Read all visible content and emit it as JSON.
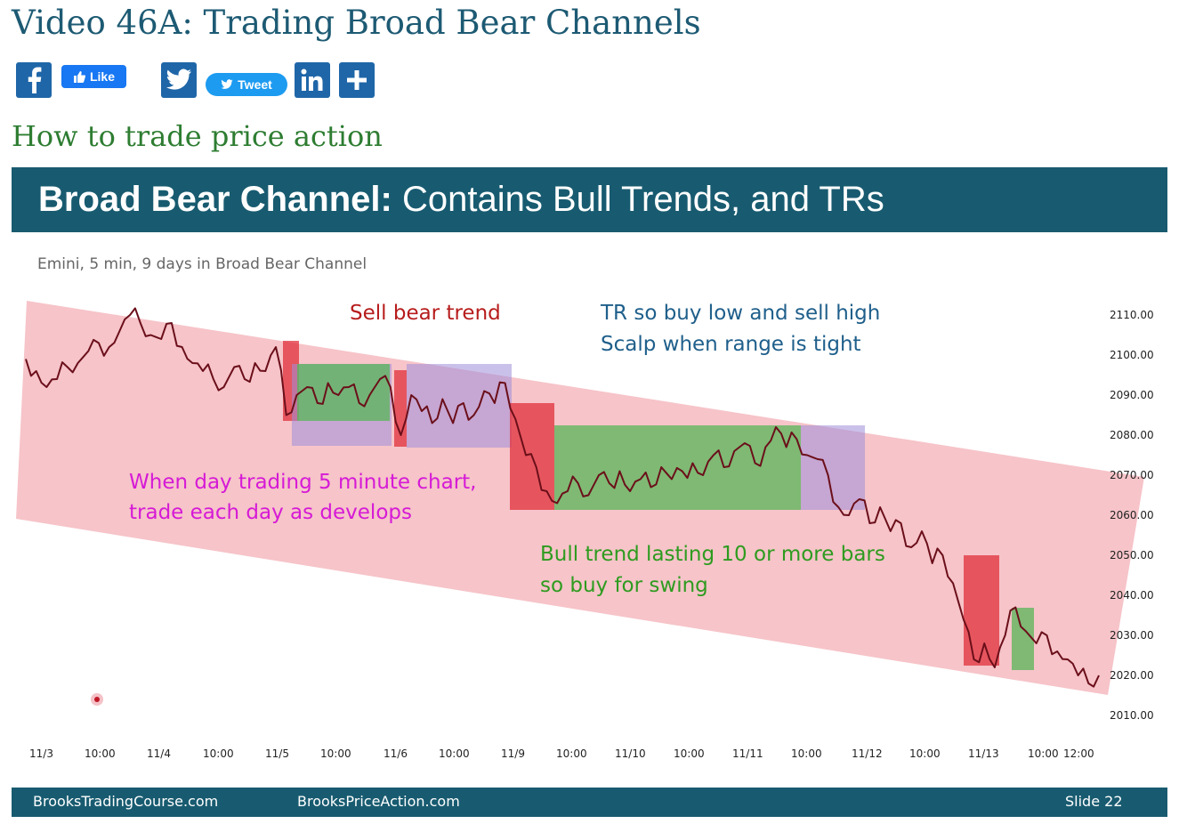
{
  "page": {
    "title": "Video 46A: Trading Broad Bear Channels",
    "subtitle": "How to trade price action"
  },
  "share": {
    "like_label": "Like",
    "tweet_label": "Tweet",
    "icons": [
      "facebook-icon",
      "thumbs-up-icon",
      "twitter-icon",
      "linkedin-icon",
      "plus-icon"
    ],
    "colors": {
      "facebook": "#1f66a8",
      "like": "#1877f2",
      "tweet": "#1d9bf0"
    }
  },
  "slide": {
    "heading_bold": "Broad Bear Channel:",
    "heading_rest": " Contains Bull Trends, and TRs",
    "chart_label": "Emini, 5 min, 9 days in Broad Bear Channel",
    "footer_left": "BrooksTradingCourse.com",
    "footer_mid": "BrooksPriceAction.com",
    "footer_right": "Slide  22",
    "header_color": "#185b70"
  },
  "annotations": {
    "sell_bear": "Sell bear trend",
    "tr_line1": "TR so buy low and sell high",
    "tr_line2": "Scalp when range is tight",
    "day_line1": "When day trading 5 minute chart,",
    "day_line2": "trade each day as develops",
    "bull_line1": "Bull trend lasting 10 or more bars",
    "bull_line2": "so buy for swing",
    "colors": {
      "sell": "#b71c1c",
      "tr": "#1f5f8b",
      "day": "#d61ad6",
      "bull": "#2e9b1f"
    }
  },
  "chart_data": {
    "type": "line",
    "title": "Emini, 5 min, 9 days in Broad Bear Channel",
    "yticks": [
      "2110.00",
      "2100.00",
      "2090.00",
      "2080.00",
      "2070.00",
      "2060.00",
      "2050.00",
      "2040.00",
      "2030.00",
      "2020.00",
      "2010.00"
    ],
    "xticks": [
      "11/3",
      "10:00",
      "11/4",
      "10:00",
      "11/5",
      "10:00",
      "11/6",
      "10:00",
      "11/9",
      "10:00",
      "11/10",
      "10:00",
      "11/11",
      "10:00",
      "11/12",
      "10:00",
      "11/13",
      "10:00",
      "12:00"
    ],
    "ylim": [
      2007,
      2115
    ],
    "price_color": "#6b0f1a",
    "series": [
      {
        "values": [
          2099,
          2096,
          2092,
          2094,
          2097,
          2098,
          2101,
          2103,
          2102,
          2106,
          2110,
          2108,
          2105,
          2104,
          2108,
          2102,
          2098,
          2096,
          2094,
          2092,
          2097,
          2094,
          2098,
          2096,
          2102,
          2085,
          2090,
          2092,
          2088,
          2093,
          2090,
          2092,
          2088,
          2090,
          2094,
          2092,
          2080,
          2090,
          2086,
          2083,
          2089,
          2083,
          2088,
          2085,
          2091,
          2088,
          2093,
          2084,
          2075,
          2072,
          2066,
          2063,
          2066,
          2068,
          2065,
          2070,
          2068,
          2071,
          2066,
          2069,
          2067,
          2072,
          2069,
          2071,
          2073,
          2070,
          2075,
          2072,
          2076,
          2078,
          2073,
          2077,
          2082,
          2077,
          2079,
          2075,
          2074,
          2070,
          2062,
          2060,
          2064,
          2058,
          2062,
          2056,
          2058,
          2052,
          2056,
          2048,
          2050,
          2043,
          2034,
          2024,
          2028,
          2022,
          2030,
          2037,
          2031,
          2028,
          2030,
          2026,
          2024,
          2020,
          2018,
          2020
        ]
      }
    ],
    "regions": [
      {
        "kind": "bear",
        "x0": 0,
        "x1": 0.6
      },
      {
        "kind": "bull",
        "x0": 0.6,
        "x1": 1
      },
      {
        "kind": "tr",
        "x0": 0.7,
        "x1": 1
      }
    ],
    "shading_colors": {
      "bear": "#e0303a",
      "bull": "#57b657",
      "tr": "#9e8ed8",
      "channel": "#f0a0a8"
    }
  }
}
